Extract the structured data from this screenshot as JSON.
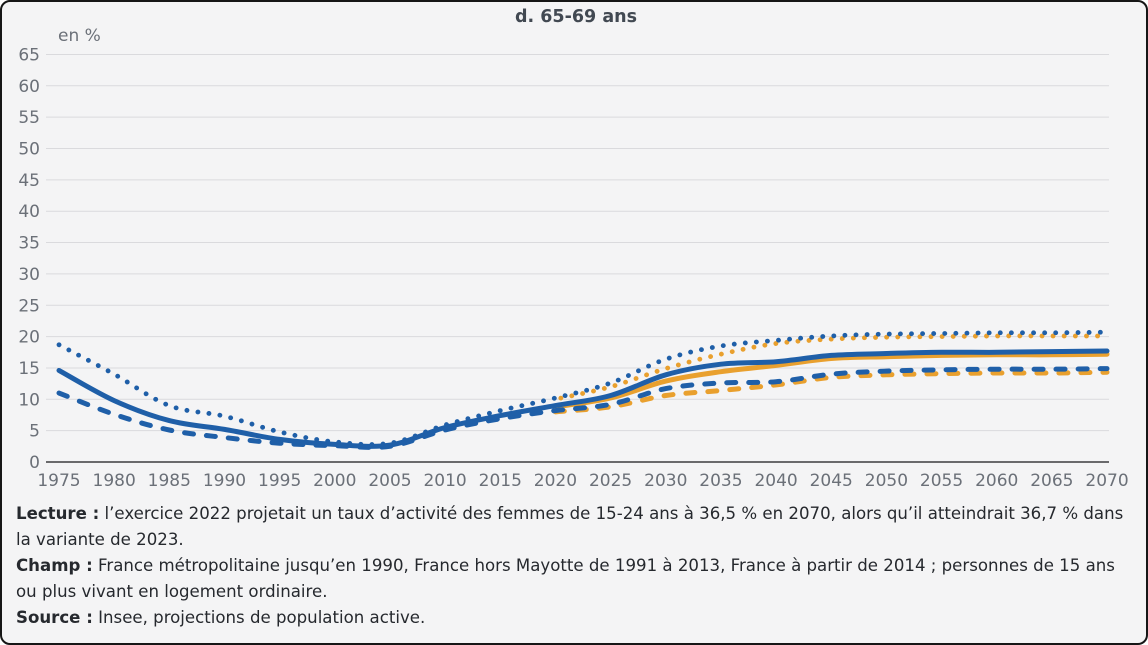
{
  "chart_data": {
    "type": "line",
    "title": "d. 65-69 ans",
    "ylabel": "en %",
    "xlabel": "",
    "ylim": [
      0,
      65
    ],
    "ytick_step": 5,
    "xlim": [
      1975,
      2070
    ],
    "xtick_step": 5,
    "grid": true,
    "legend_position": "none",
    "x": [
      1975,
      1980,
      1985,
      1990,
      1995,
      2000,
      2005,
      2010,
      2015,
      2020,
      2025,
      2030,
      2035,
      2040,
      2045,
      2050,
      2055,
      2060,
      2065,
      2070
    ],
    "series": [
      {
        "name": "orange-dashed",
        "line_style": "dashed",
        "color": "#e9a02e",
        "values": [
          null,
          null,
          null,
          null,
          null,
          null,
          null,
          null,
          null,
          8.0,
          8.8,
          10.6,
          11.4,
          12.3,
          13.5,
          13.9,
          14.1,
          14.2,
          14.2,
          14.3
        ]
      },
      {
        "name": "orange-solid",
        "line_style": "solid",
        "color": "#e9a02e",
        "values": [
          null,
          null,
          null,
          null,
          null,
          null,
          null,
          null,
          null,
          8.8,
          10.2,
          12.9,
          14.4,
          15.4,
          16.5,
          16.8,
          17.0,
          17.1,
          17.1,
          17.2
        ]
      },
      {
        "name": "orange-dotted",
        "line_style": "dotted",
        "color": "#e9a02e",
        "values": [
          null,
          null,
          null,
          null,
          null,
          null,
          null,
          null,
          null,
          10.0,
          12.0,
          14.9,
          17.2,
          18.9,
          19.6,
          19.9,
          20.0,
          20.1,
          20.1,
          20.1
        ]
      },
      {
        "name": "blue-dashed",
        "line_style": "dashed",
        "color": "#1f5fa8",
        "values": [
          11.0,
          7.6,
          5.1,
          3.9,
          3.0,
          2.6,
          2.5,
          5.1,
          6.9,
          8.2,
          9.2,
          11.7,
          12.6,
          12.8,
          14.0,
          14.5,
          14.7,
          14.8,
          14.8,
          14.9
        ]
      },
      {
        "name": "blue-solid",
        "line_style": "solid",
        "color": "#1f5fa8",
        "values": [
          14.6,
          9.8,
          6.6,
          5.2,
          3.6,
          2.8,
          2.7,
          5.5,
          7.4,
          9.0,
          10.6,
          13.9,
          15.6,
          16.0,
          17.0,
          17.3,
          17.5,
          17.5,
          17.6,
          17.7
        ]
      },
      {
        "name": "blue-dotted",
        "line_style": "dotted",
        "color": "#1f5fa8",
        "values": [
          18.7,
          14.0,
          9.0,
          7.3,
          4.8,
          3.2,
          3.0,
          5.9,
          8.2,
          10.2,
          12.6,
          16.4,
          18.5,
          19.4,
          20.1,
          20.4,
          20.5,
          20.6,
          20.6,
          20.7
        ]
      }
    ]
  },
  "colors": {
    "background": "#f4f4f5",
    "blue": "#1f5fa8",
    "orange": "#e9a02e",
    "gridline": "#dadadd",
    "axis_line": "#3c3c3e",
    "tick_text": "#6b7078",
    "title_text": "#424952",
    "note_text": "#26292e",
    "border": "#161616"
  },
  "notes": [
    {
      "label": "Lecture :",
      "text": " l’exercice 2022 projetait un taux d’activité des femmes de 15-24 ans à 36,5 % en 2070, alors qu’il atteindrait 36,7 % dans la variante de 2023."
    },
    {
      "label": "Champ :",
      "text": " France métropolitaine jusqu’en 1990, France hors Mayotte de 1991 à 2013, France à partir de 2014 ; personnes de 15 ans ou plus vivant en logement ordinaire."
    },
    {
      "label": "Source :",
      "text": " Insee, projections de population active."
    }
  ]
}
